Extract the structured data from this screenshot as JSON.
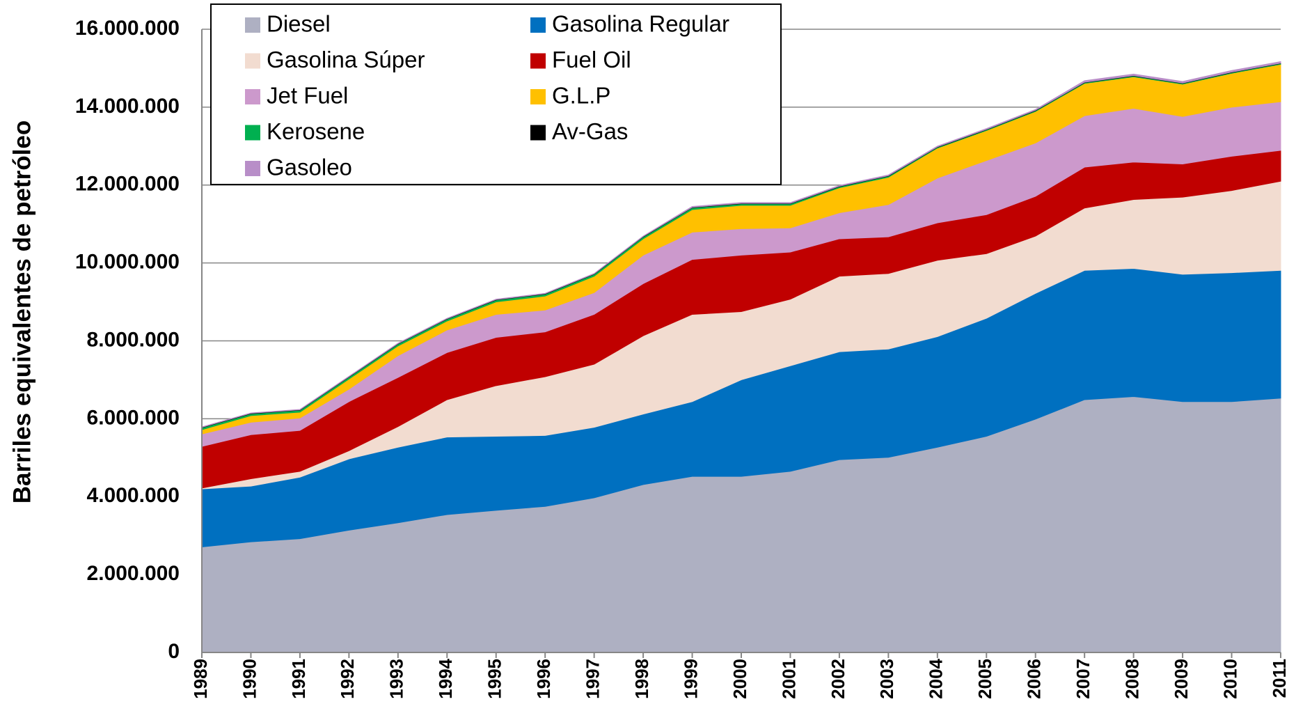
{
  "chart_data": {
    "type": "stacked_area",
    "y_label": "Barriles equivalentes de petróleo",
    "categories": [
      "1989",
      "1990",
      "1991",
      "1992",
      "1993",
      "1994",
      "1995",
      "1996",
      "1997",
      "1998",
      "1999",
      "2000",
      "2001",
      "2002",
      "2003",
      "2004",
      "2005",
      "2006",
      "2007",
      "2008",
      "2009",
      "2010",
      "2011"
    ],
    "series": [
      {
        "name": "Diesel",
        "color": "#aeb0c2",
        "values": [
          2710000,
          2840000,
          2920000,
          3140000,
          3330000,
          3540000,
          3650000,
          3750000,
          3970000,
          4310000,
          4520000,
          4520000,
          4650000,
          4950000,
          5010000,
          5270000,
          5550000,
          5990000,
          6490000,
          6570000,
          6440000,
          6440000,
          6530000
        ]
      },
      {
        "name": "Gasolina Regular",
        "color": "#0070c0",
        "values": [
          1490000,
          1430000,
          1580000,
          1830000,
          1940000,
          1990000,
          1900000,
          1820000,
          1810000,
          1810000,
          1920000,
          2480000,
          2710000,
          2770000,
          2780000,
          2840000,
          3030000,
          3230000,
          3320000,
          3290000,
          3270000,
          3310000,
          3280000
        ]
      },
      {
        "name": "Gasolina Súper",
        "color": "#f2dcd0",
        "values": [
          20000,
          190000,
          150000,
          210000,
          530000,
          960000,
          1300000,
          1510000,
          1620000,
          2010000,
          2240000,
          1750000,
          1710000,
          1940000,
          1940000,
          1960000,
          1660000,
          1470000,
          1600000,
          1770000,
          1980000,
          2110000,
          2290000
        ]
      },
      {
        "name": "Fuel Oil",
        "color": "#c00000",
        "values": [
          1070000,
          1130000,
          1050000,
          1260000,
          1260000,
          1210000,
          1240000,
          1150000,
          1280000,
          1340000,
          1410000,
          1450000,
          1210000,
          960000,
          940000,
          960000,
          1000000,
          1020000,
          1050000,
          960000,
          850000,
          880000,
          790000
        ]
      },
      {
        "name": "Jet Fuel",
        "color": "#cc99cc",
        "values": [
          320000,
          320000,
          320000,
          320000,
          560000,
          580000,
          590000,
          560000,
          560000,
          730000,
          700000,
          680000,
          620000,
          670000,
          830000,
          1150000,
          1390000,
          1370000,
          1320000,
          1380000,
          1220000,
          1260000,
          1250000
        ]
      },
      {
        "name": "G.L.P",
        "color": "#ffc000",
        "values": [
          110000,
          170000,
          150000,
          260000,
          250000,
          230000,
          320000,
          360000,
          420000,
          420000,
          580000,
          600000,
          580000,
          640000,
          700000,
          770000,
          770000,
          810000,
          830000,
          810000,
          830000,
          870000,
          960000
        ]
      },
      {
        "name": "Kerosene",
        "color": "#00b050",
        "values": [
          50000,
          50000,
          50000,
          50000,
          50000,
          50000,
          50000,
          50000,
          50000,
          50000,
          50000,
          40000,
          40000,
          30000,
          30000,
          20000,
          20000,
          20000,
          20000,
          20000,
          20000,
          20000,
          20000
        ]
      },
      {
        "name": "Av-Gas",
        "color": "#000000",
        "values": [
          10000,
          10000,
          10000,
          10000,
          10000,
          10000,
          10000,
          10000,
          10000,
          10000,
          10000,
          10000,
          10000,
          10000,
          10000,
          10000,
          10000,
          10000,
          10000,
          10000,
          10000,
          10000,
          10000
        ]
      },
      {
        "name": "Gasoleo",
        "color": "#b88ec8",
        "values": [
          10000,
          10000,
          10000,
          10000,
          10000,
          10000,
          10000,
          10000,
          10000,
          10000,
          20000,
          20000,
          20000,
          20000,
          20000,
          20000,
          20000,
          20000,
          40000,
          40000,
          40000,
          40000,
          40000
        ]
      }
    ],
    "ylim": [
      0,
      16000000
    ],
    "yticks": [
      0,
      {
        "value": 2000000,
        "label": "2.000.000"
      },
      {
        "value": 4000000,
        "label": "4.000.000"
      },
      {
        "value": 6000000,
        "label": "6.000.000"
      },
      {
        "value": 8000000,
        "label": "8.000.000"
      },
      {
        "value": 10000000,
        "label": "10.000.000"
      },
      {
        "value": 12000000,
        "label": "12.000.000"
      },
      {
        "value": 14000000,
        "label": "14.000.000"
      },
      {
        "value": 16000000,
        "label": "16.000.000"
      }
    ],
    "grid": true,
    "legend": "top-left"
  }
}
